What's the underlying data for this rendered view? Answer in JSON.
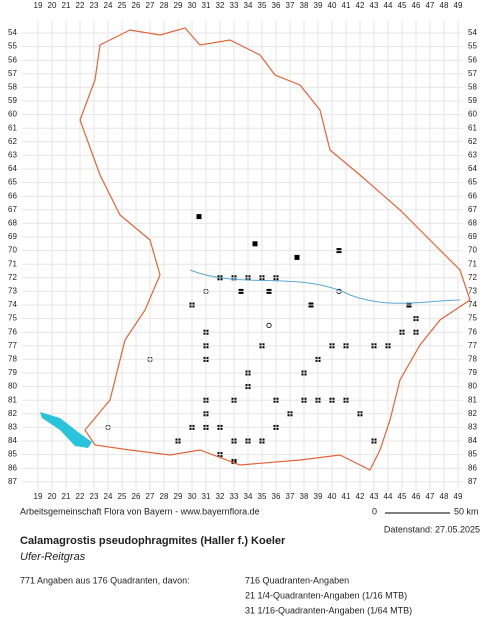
{
  "map": {
    "columns": [
      19,
      20,
      21,
      22,
      23,
      24,
      25,
      26,
      27,
      28,
      29,
      30,
      31,
      32,
      33,
      34,
      35,
      36,
      37,
      38,
      39,
      40,
      41,
      42,
      43,
      44,
      45,
      46,
      47,
      48,
      49
    ],
    "rows": [
      54,
      55,
      56,
      57,
      58,
      59,
      60,
      61,
      62,
      63,
      64,
      65,
      66,
      67,
      68,
      69,
      70,
      71,
      72,
      73,
      74,
      75,
      76,
      77,
      78,
      79,
      80,
      81,
      82,
      83,
      84,
      85,
      86,
      87
    ],
    "credit": "Arbeitsgemeinschaft Flora von Bayern - www.bayernflora.de",
    "scale_start": "0",
    "scale_end": "50 km",
    "date": "Datenstand: 27.05.2025",
    "title": "Calamagrostis pseudophragmites (Haller f.) Koeler",
    "common_name": "Ufer-Reitgras",
    "summary": "771 Angaben aus 176 Quadranten, davon:",
    "counts": [
      "716 Quadranten-Angaben",
      "21 1/4-Quadranten-Angaben (1/16 MTB)",
      "31 1/16-Quadranten-Angaben (1/64 MTB)"
    ]
  }
}
